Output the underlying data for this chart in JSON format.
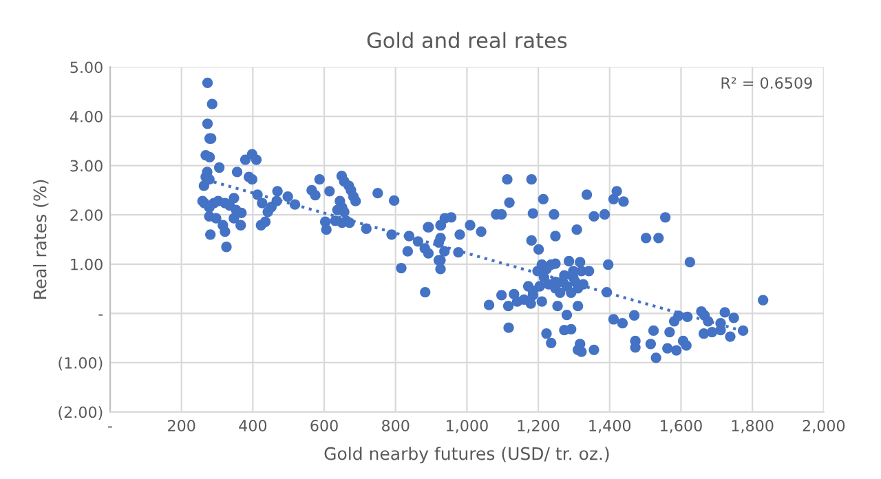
{
  "chart_data": {
    "type": "scatter",
    "title": "Gold and real rates",
    "xlabel": "Gold nearby futures (USD/ tr. oz.)",
    "ylabel": "Real rates (%)",
    "annotations": [
      "R² = 0.6509"
    ],
    "xlim": [
      0,
      2000
    ],
    "xticks": [
      {
        "value": 0,
        "label": "-"
      },
      200,
      400,
      600,
      800,
      {
        "value": 1000,
        "label": "1,000"
      },
      {
        "value": 1200,
        "label": "1,200"
      },
      {
        "value": 1400,
        "label": "1,400"
      },
      {
        "value": 1600,
        "label": "1,600"
      },
      {
        "value": 1800,
        "label": "1,800"
      },
      {
        "value": 2000,
        "label": "2,000"
      }
    ],
    "ylim": [
      -2,
      5
    ],
    "yticks": [
      {
        "value": -2,
        "label": "(2.00)"
      },
      {
        "value": -1,
        "label": "(1.00)"
      },
      {
        "value": 0,
        "label": "-"
      },
      {
        "value": 1,
        "label": "1.00"
      },
      {
        "value": 2,
        "label": "2.00"
      },
      {
        "value": 3,
        "label": "3.00"
      },
      {
        "value": 4,
        "label": "4.00"
      },
      {
        "value": 5,
        "label": "5.00"
      }
    ],
    "grid": true,
    "marker": "circle",
    "series": [
      {
        "color": "#4472c4",
        "x": [
          273,
          273,
          286,
          279,
          283,
          268,
          279,
          306,
          272,
          268,
          278,
          263,
          259,
          264,
          278,
          291,
          303,
          322,
          335,
          347,
          278,
          297,
          316,
          322,
          281,
          326,
          353,
          347,
          366,
          368,
          356,
          379,
          398,
          410,
          389,
          398,
          413,
          426,
          423,
          435,
          442,
          452,
          469,
          467,
          498,
          518,
          565,
          575,
          587,
          615,
          603,
          606,
          649,
          656,
          669,
          675,
          682,
          688,
          644,
          650,
          656,
          637,
          662,
          650,
          671,
          631,
          718,
          750,
          796,
          789,
          816,
          838,
          834,
          863,
          882,
          892,
          891,
          883,
          926,
          926,
          926,
          926,
          938,
          893,
          927,
          921,
          937,
          921,
          956,
          980,
          976,
          1009,
          1040,
          1062,
          1097,
          1116,
          1132,
          1141,
          1160,
          1117,
          1082,
          1097,
          1113,
          1119,
          1181,
          1185,
          1181,
          1201,
          1214,
          1244,
          1248,
          1308,
          1336,
          1356,
          1386,
          1411,
          1420,
          1439,
          1396,
          1392,
          1172,
          1185,
          1179,
          1198,
          1210,
          1223,
          1216,
          1236,
          1248,
          1229,
          1248,
          1261,
          1254,
          1267,
          1280,
          1286,
          1298,
          1304,
          1311,
          1317,
          1321,
          1326,
          1342,
          1311,
          1280,
          1210,
          1204,
          1185,
          1292,
          1248,
          1273,
          1298,
          1223,
          1236,
          1273,
          1292,
          1317,
          1311,
          1321,
          1356,
          1411,
          1436,
          1469,
          1472,
          1472,
          1515,
          1523,
          1530,
          1562,
          1587,
          1568,
          1581,
          1593,
          1618,
          1606,
          1615,
          1625,
          1502,
          1537,
          1556,
          1657,
          1666,
          1676,
          1664,
          1687,
          1711,
          1723,
          1711,
          1738,
          1748,
          1774,
          1830
        ],
        "values": [
          4.68,
          3.85,
          4.25,
          3.55,
          3.55,
          3.21,
          3.17,
          2.96,
          2.87,
          2.77,
          2.72,
          2.59,
          2.28,
          2.24,
          2.15,
          2.24,
          2.28,
          2.24,
          2.19,
          2.34,
          1.97,
          1.93,
          1.79,
          1.66,
          1.6,
          1.35,
          2.1,
          1.93,
          1.79,
          2.04,
          2.87,
          3.12,
          3.23,
          3.12,
          2.77,
          2.72,
          2.41,
          2.24,
          1.79,
          1.86,
          2.06,
          2.16,
          2.48,
          2.28,
          2.37,
          2.21,
          2.5,
          2.4,
          2.72,
          2.48,
          1.86,
          1.7,
          2.79,
          2.68,
          2.59,
          2.5,
          2.37,
          2.28,
          2.28,
          2.15,
          2.06,
          2.1,
          1.88,
          1.84,
          1.84,
          1.88,
          1.72,
          2.44,
          2.29,
          1.6,
          0.92,
          1.57,
          1.26,
          1.46,
          1.32,
          1.22,
          1.75,
          0.43,
          1.79,
          1.53,
          1.08,
          0.9,
          1.93,
          1.75,
          1.79,
          1.44,
          1.26,
          1.08,
          1.95,
          1.6,
          1.24,
          1.79,
          1.66,
          0.17,
          0.37,
          0.15,
          0.39,
          0.24,
          0.28,
          -0.29,
          2.01,
          2.01,
          2.72,
          2.25,
          2.72,
          2.03,
          1.48,
          1.3,
          2.32,
          2.01,
          1.57,
          1.7,
          2.41,
          1.97,
          2.01,
          2.32,
          2.48,
          2.27,
          0.99,
          0.43,
          0.55,
          0.37,
          0.2,
          0.86,
          0.99,
          0.9,
          0.73,
          0.99,
          1.01,
          0.59,
          0.51,
          0.42,
          0.15,
          0.64,
          0.55,
          1.06,
          0.73,
          0.64,
          0.51,
          1.04,
          0.86,
          0.59,
          0.86,
          0.15,
          -0.03,
          0.24,
          0.55,
          0.46,
          0.42,
          0.64,
          0.77,
          0.86,
          -0.41,
          -0.6,
          -0.34,
          -0.32,
          -0.62,
          -0.74,
          -0.78,
          -0.74,
          -0.12,
          -0.2,
          -0.04,
          -0.56,
          -0.69,
          -0.62,
          -0.35,
          -0.9,
          -0.71,
          -0.75,
          -0.38,
          -0.16,
          -0.05,
          -0.07,
          -0.56,
          -0.65,
          1.04,
          1.53,
          1.53,
          1.95,
          0.04,
          -0.04,
          -0.16,
          -0.41,
          -0.38,
          -0.2,
          0.02,
          -0.34,
          -0.47,
          -0.09,
          -0.35,
          0.27
        ]
      },
      {
        "type": "line",
        "color": "#4472c4",
        "line_style": "dotted",
        "marker": "none",
        "x": [
          270,
          1770
        ],
        "values": [
          2.71,
          -0.35
        ]
      }
    ]
  }
}
